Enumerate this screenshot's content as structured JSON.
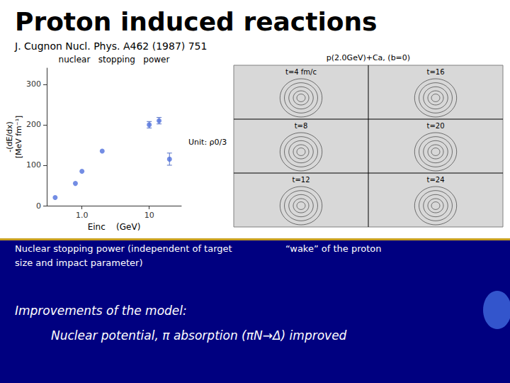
{
  "chart_data": {
    "type": "scatter",
    "title": "nuclear   stopping   power",
    "x": [
      0.4,
      0.8,
      1.0,
      2.0,
      10.0,
      14.0,
      20.0
    ],
    "values": [
      20,
      55,
      85,
      135,
      200,
      210,
      115
    ],
    "yerr": [
      0,
      0,
      0,
      0,
      8,
      8,
      15
    ],
    "xlabel": "Einc    (GeV)",
    "ylabel": "-(dE/dx)\n[MeV fm⁻¹]",
    "log": "x",
    "xlim": [
      0.3,
      30
    ],
    "xticks": [
      {
        "value": 1.0,
        "label": "1.0"
      },
      10
    ],
    "ylim": [
      0,
      340
    ],
    "yticks": [
      0,
      100,
      200,
      300
    ],
    "grid": false,
    "annotations": [
      "Proton induced reactions",
      "J. Cugnon Nucl. Phys. A462 (1987) 751",
      "Unit: ρ0/3",
      "p(2.0GeV)+Ca, (b=0)",
      "t=4 fm/c",
      "t=16",
      "t=8",
      "t=20",
      "t=12",
      "t=24",
      "Nuclear stopping power (independent of target",
      "size and impact parameter)",
      "“wake” of the proton",
      "Improvements of the model:",
      "Nuclear potential, π absorption (πN→Δ) improved"
    ]
  }
}
